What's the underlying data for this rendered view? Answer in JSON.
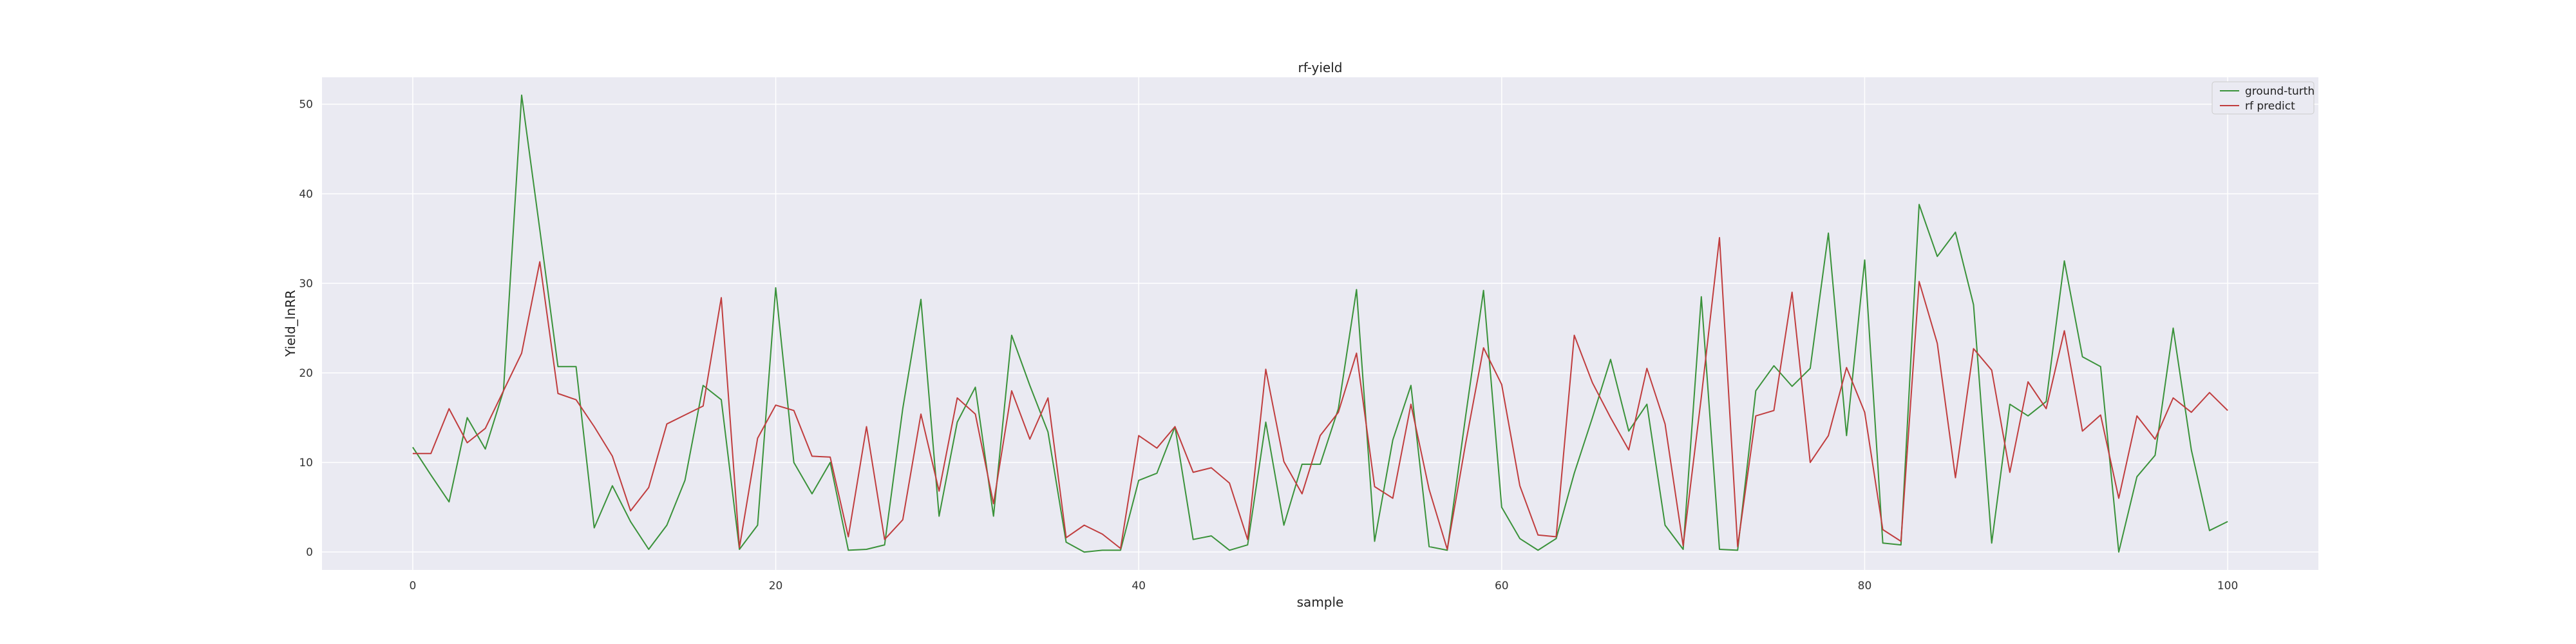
{
  "chart_data": {
    "type": "line",
    "title": "rf-yield",
    "xlabel": "sample",
    "ylabel": "Yield_lnRR",
    "xlim": [
      -5,
      105
    ],
    "ylim": [
      -2,
      53
    ],
    "xticks": [
      0,
      20,
      40,
      60,
      80,
      100
    ],
    "yticks": [
      0,
      10,
      20,
      30,
      40,
      50
    ],
    "grid": true,
    "legend_position": "top-right",
    "background_color": "#eaeaf2",
    "grid_color": "#ffffff",
    "series": [
      {
        "name": "ground-turth",
        "color": "#3a923a",
        "values": [
          11.7,
          8.6,
          5.6,
          15,
          11.5,
          18,
          51,
          36,
          20.7,
          20.7,
          2.7,
          7.4,
          3.4,
          0.3,
          3,
          8,
          18.6,
          17,
          0.3,
          3,
          29.5,
          10,
          6.5,
          10,
          0.2,
          0.3,
          0.8,
          16,
          28.2,
          4,
          14.5,
          18.4,
          4,
          24.2,
          18.6,
          13.4,
          1.1,
          0,
          0.2,
          0.2,
          8,
          8.8,
          14,
          1.4,
          1.8,
          0.2,
          0.8,
          14.5,
          3,
          9.8,
          9.8,
          16,
          29.3,
          1.2,
          12.5,
          18.6,
          0.6,
          0.2,
          15,
          29.2,
          5,
          1.5,
          0.2,
          1.5,
          8.8,
          15,
          21.5,
          13.5,
          16.5,
          3,
          0.3,
          28.5,
          0.3,
          0.2,
          18,
          20.8,
          18.5,
          20.5,
          35.6,
          13,
          32.6,
          1,
          0.8,
          38.8,
          33,
          35.7,
          27.6,
          1,
          16.5,
          15.2,
          16.8,
          32.5,
          21.8,
          20.7,
          0,
          8.4,
          10.8,
          25,
          11.4,
          2.4,
          3.4
        ]
      },
      {
        "name": "rf predict",
        "color": "#c03d3e",
        "values": [
          11,
          11,
          16,
          12.2,
          13.8,
          18,
          22.2,
          32.4,
          17.7,
          17,
          14,
          10.7,
          4.6,
          7.2,
          14.3,
          15.3,
          16.3,
          28.4,
          0.5,
          12.7,
          16.4,
          15.8,
          10.7,
          10.6,
          1.7,
          14,
          1.4,
          3.6,
          15.4,
          6.8,
          17.2,
          15.4,
          5.4,
          18,
          12.6,
          17.2,
          1.6,
          3,
          2,
          0.4,
          13,
          11.6,
          14,
          8.9,
          9.4,
          7.7,
          1.4,
          20.4,
          10.1,
          6.5,
          13,
          15.6,
          22.2,
          7.3,
          6,
          16.5,
          7,
          0.3,
          12,
          22.8,
          18.7,
          7.4,
          1.9,
          1.7,
          24.2,
          18.9,
          15,
          11.4,
          20.5,
          14.3,
          0.7,
          17.3,
          35.1,
          0.6,
          15.2,
          15.8,
          29,
          10,
          13,
          20.6,
          15.6,
          2.5,
          1.2,
          30.2,
          23.3,
          8.3,
          22.7,
          20.3,
          8.9,
          19,
          16,
          24.7,
          13.5,
          15.3,
          6,
          15.2,
          12.6,
          17.2,
          15.6,
          17.8,
          15.8
        ]
      }
    ]
  }
}
